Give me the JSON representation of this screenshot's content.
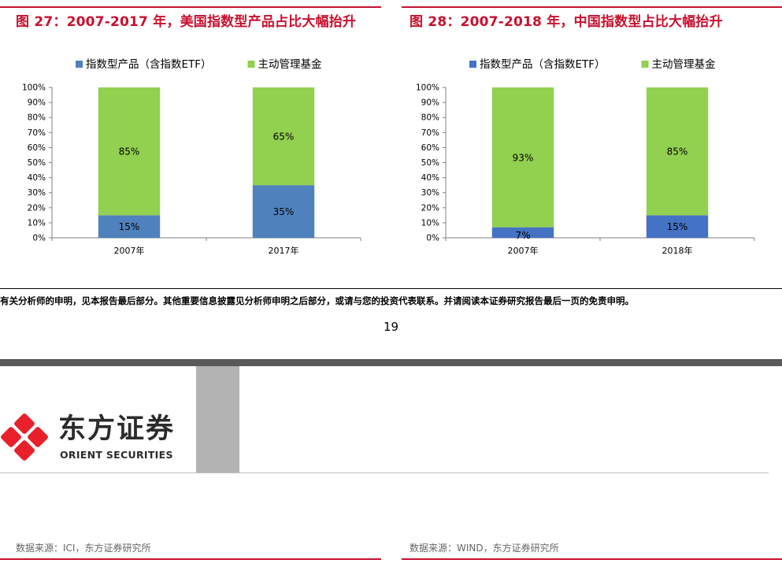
{
  "figures": [
    {
      "title": "图 27：2007-2017 年，美国指数型产品占比大幅抬升",
      "source": "数据来源：ICI，东方证券研究所"
    },
    {
      "title": "图 28：2007-2018 年，中国指数型占比大幅抬升",
      "source": "数据来源：WIND，东方证券研究所"
    }
  ],
  "chart_data": [
    {
      "type": "bar",
      "stacked": true,
      "percent": true,
      "categories": [
        "2007年",
        "2017年"
      ],
      "series": [
        {
          "name": "指数型产品（含指数ETF）",
          "values": [
            15,
            35
          ],
          "labels": [
            "15%",
            "35%"
          ],
          "color": "#4f81bd"
        },
        {
          "name": "主动管理基金",
          "values": [
            85,
            65
          ],
          "labels": [
            "85%",
            "65%"
          ],
          "color": "#92d050"
        }
      ],
      "ylim": [
        0,
        100
      ],
      "yticks": [
        "0%",
        "10%",
        "20%",
        "30%",
        "40%",
        "50%",
        "60%",
        "70%",
        "80%",
        "90%",
        "100%"
      ],
      "legend": "top",
      "grid": false
    },
    {
      "type": "bar",
      "stacked": true,
      "percent": true,
      "categories": [
        "2007年",
        "2018年"
      ],
      "series": [
        {
          "name": "指数型产品（含指数ETF）",
          "values": [
            7,
            15
          ],
          "labels": [
            "7%",
            "15%"
          ],
          "color": "#4472c4"
        },
        {
          "name": "主动管理基金",
          "values": [
            93,
            85
          ],
          "labels": [
            "93%",
            "85%"
          ],
          "color": "#92d050"
        }
      ],
      "ylim": [
        0,
        100
      ],
      "yticks": [
        "0%",
        "10%",
        "20%",
        "30%",
        "40%",
        "50%",
        "60%",
        "70%",
        "80%",
        "90%",
        "100%"
      ],
      "legend": "top",
      "grid": false
    }
  ],
  "disclaimer": "有关分析师的申明，见本报告最后部分。其他重要信息披露见分析师申明之后部分，或请与您的投资代表联系。并请阅读本证券研究报告最后一页的免责申明。",
  "page_number": "19",
  "logo": {
    "name_cn": "东方证券",
    "name_en": "ORIENT SECURITIES",
    "color": "#e8202a"
  },
  "colors": {
    "accent": "#c8102e"
  }
}
